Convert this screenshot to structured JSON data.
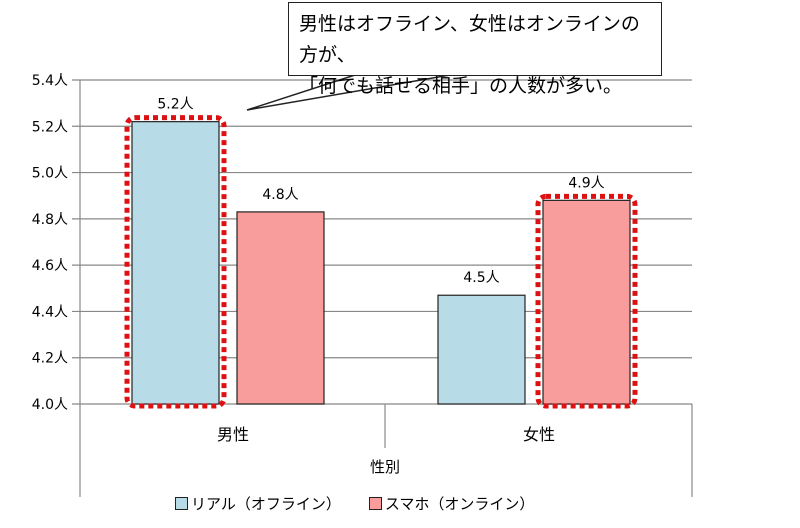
{
  "chart_data": {
    "type": "bar",
    "title": "",
    "xlabel": "性別",
    "ylabel": "",
    "categories": [
      "男性",
      "女性"
    ],
    "series": [
      {
        "name": "リアル（オフライン）",
        "values": [
          5.22,
          4.47
        ],
        "labels": [
          "5.2人",
          "4.5人"
        ],
        "color": "#b8dbe8"
      },
      {
        "name": "スマホ（オンライン）",
        "values": [
          4.83,
          4.88
        ],
        "labels": [
          "4.8人",
          "4.9人"
        ],
        "color": "#f89c9c"
      }
    ],
    "ylim": [
      4.0,
      5.4
    ],
    "yticks": [
      "4.0人",
      "4.2人",
      "4.4人",
      "4.6人",
      "4.8人",
      "5.0人",
      "5.2人",
      "5.4人"
    ],
    "grid": true,
    "legend": "bottom",
    "highlight_color": "#dd1111",
    "highlighted": [
      [
        0,
        0
      ],
      [
        1,
        1
      ]
    ],
    "annotation": [
      "男性はオフライン、女性はオンラインの方が、",
      "「何でも話せる相手」の人数が多い。"
    ]
  }
}
